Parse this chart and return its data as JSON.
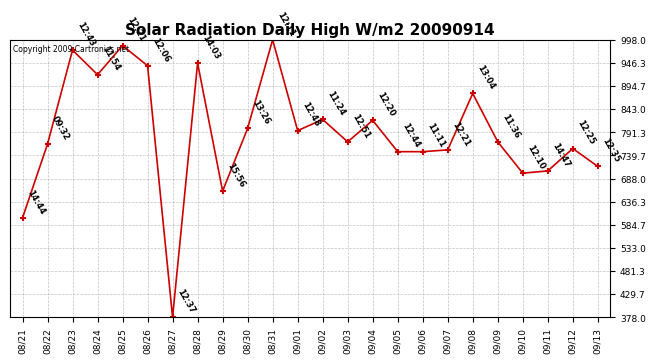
{
  "title": "Solar Radiation Daily High W/m2 20090914",
  "copyright": "Copyright 2009 Cartronics.net",
  "dates": [
    "08/21",
    "08/22",
    "08/23",
    "08/24",
    "08/25",
    "08/26",
    "08/27",
    "08/28",
    "08/29",
    "08/30",
    "08/31",
    "09/01",
    "09/02",
    "09/03",
    "09/04",
    "09/05",
    "09/06",
    "09/07",
    "09/08",
    "09/09",
    "09/10",
    "09/11",
    "09/12",
    "09/13"
  ],
  "values": [
    600,
    765,
    975,
    920,
    985,
    940,
    378,
    946,
    660,
    800,
    998,
    795,
    820,
    770,
    818,
    748,
    748,
    752,
    878,
    770,
    700,
    705,
    755,
    715
  ],
  "times": [
    "14:44",
    "09:32",
    "12:43",
    "11:54",
    "12:21",
    "12:06",
    "12:37",
    "14:03",
    "15:56",
    "13:26",
    "12:11",
    "12:48",
    "11:24",
    "12:51",
    "12:20",
    "12:44",
    "11:11",
    "12:21",
    "13:04",
    "11:36",
    "12:10",
    "14:47",
    "12:25",
    "12:35"
  ],
  "ylim_min": 378.0,
  "ylim_max": 998.0,
  "yticks": [
    378.0,
    429.7,
    481.3,
    533.0,
    584.7,
    636.3,
    688.0,
    739.7,
    791.3,
    843.0,
    894.7,
    946.3,
    998.0
  ],
  "line_color": "#cc0000",
  "bg_color": "#ffffff",
  "grid_color": "#aaaaaa",
  "title_fontsize": 11,
  "tick_fontsize": 6.5,
  "annotation_fontsize": 6,
  "copyright_fontsize": 5.5
}
